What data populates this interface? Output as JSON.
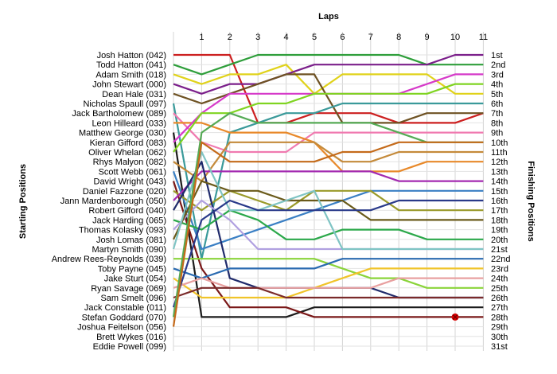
{
  "chart_data": {
    "type": "line",
    "title": "Laps",
    "xlabel": "Laps",
    "ylabel_left": "Starting Positions",
    "ylabel_right": "Finishing Positions",
    "laps": [
      1,
      2,
      3,
      4,
      5,
      6,
      7,
      8,
      9,
      10,
      11
    ],
    "finishing_labels": [
      "1st",
      "2nd",
      "3rd",
      "4th",
      "5th",
      "6th",
      "7th",
      "8th",
      "9th",
      "10th",
      "11th",
      "12th",
      "13th",
      "14th",
      "15th",
      "16th",
      "17th",
      "18th",
      "19th",
      "20th",
      "21st",
      "22nd",
      "23rd",
      "24th",
      "25th",
      "26th",
      "27th",
      "28th",
      "29th",
      "30th",
      "31st"
    ],
    "y_range": [
      1,
      31
    ],
    "grid": true,
    "drivers": [
      {
        "name": "Josh Hatton (042)",
        "color": "#cc1f1f",
        "positions": [
          1,
          1,
          1,
          8,
          8,
          7,
          7,
          7,
          8,
          8,
          8,
          7
        ]
      },
      {
        "name": "Todd Hatton (041)",
        "color": "#2e9e3a",
        "positions": [
          2,
          3,
          2,
          1,
          1,
          1,
          1,
          1,
          1,
          2,
          2,
          2
        ]
      },
      {
        "name": "Adam Smith (018)",
        "color": "#e0d21a",
        "positions": [
          3,
          4,
          3,
          3,
          2,
          5,
          3,
          3,
          3,
          3,
          5,
          5
        ]
      },
      {
        "name": "John Stewart (000)",
        "color": "#7b1f8a",
        "positions": [
          4,
          5,
          4,
          4,
          3,
          2,
          2,
          2,
          2,
          2,
          1,
          1
        ]
      },
      {
        "name": "Dean Hale (031)",
        "color": "#6e5223",
        "positions": [
          5,
          6,
          5,
          4,
          3,
          3,
          8,
          8,
          8,
          7,
          7,
          7
        ]
      },
      {
        "name": "Nicholas Spaull (097)",
        "color": "#3a9a9a",
        "positions": [
          6,
          22,
          9,
          8,
          7,
          7,
          6,
          6,
          6,
          6,
          6,
          6
        ]
      },
      {
        "name": "Jack Bartholomew (089)",
        "color": "#f07ab0",
        "positions": [
          7,
          10,
          11,
          11,
          11,
          9,
          9,
          9,
          9,
          9,
          9,
          9
        ]
      },
      {
        "name": "Leon Hilleard (033)",
        "color": "#e8892a",
        "positions": [
          8,
          8,
          9,
          9,
          9,
          10,
          13,
          13,
          13,
          12,
          12,
          12
        ]
      },
      {
        "name": "Matthew George (030)",
        "color": "#1c1c1c",
        "positions": [
          9,
          28,
          28,
          28,
          28,
          27,
          27,
          27,
          27,
          27,
          27,
          27
        ]
      },
      {
        "name": "Kieran Gifford (083)",
        "color": "#d63ac9",
        "positions": [
          10,
          7,
          5,
          5,
          5,
          5,
          5,
          5,
          5,
          4,
          3,
          3
        ]
      },
      {
        "name": "Oliver Whelan (062)",
        "color": "#7fd421",
        "positions": [
          11,
          7,
          7,
          6,
          6,
          5,
          5,
          5,
          5,
          5,
          4,
          4
        ]
      },
      {
        "name": "Rhys Malyon (082)",
        "color": "#c48a3a",
        "positions": [
          12,
          14,
          10,
          10,
          10,
          10,
          12,
          12,
          11,
          11,
          11,
          11
        ]
      },
      {
        "name": "Scott Webb (061)",
        "color": "#3a7fc4",
        "positions": [
          13,
          21,
          20,
          19,
          18,
          17,
          16,
          15,
          15,
          15,
          15,
          15
        ]
      },
      {
        "name": "David Wright (043)",
        "color": "#7a1818",
        "positions": [
          14,
          23,
          27,
          27,
          27,
          28,
          28,
          28,
          28,
          28,
          28,
          28
        ]
      },
      {
        "name": "Daniel Fazzone (020)",
        "color": "#9a9a2a",
        "positions": [
          15,
          17,
          15,
          16,
          17,
          15,
          15,
          15,
          17,
          17,
          17,
          17
        ]
      },
      {
        "name": "Jann Mardenborough (050)",
        "color": "#a32ab0",
        "positions": [
          16,
          13,
          13,
          13,
          13,
          13,
          13,
          13,
          14,
          14,
          14,
          14
        ]
      },
      {
        "name": "Robert Gifford (040)",
        "color": "#1f2a6b",
        "positions": [
          17,
          12,
          24,
          25,
          25,
          25,
          25,
          25,
          26,
          26,
          26,
          26
        ]
      },
      {
        "name": "Jack Harding (065)",
        "color": "#2ba84a",
        "positions": [
          18,
          19,
          17,
          18,
          20,
          20,
          19,
          19,
          19,
          20,
          20,
          20
        ]
      },
      {
        "name": "Thomas Kolasky (093)",
        "color": "#b0a0e0",
        "positions": [
          19,
          16,
          18,
          21,
          21,
          21,
          21,
          21,
          21,
          21,
          21,
          21
        ]
      },
      {
        "name": "Josh Lomas (081)",
        "color": "#6a5a1a",
        "positions": [
          20,
          14,
          15,
          15,
          16,
          16,
          16,
          18,
          18,
          18,
          18,
          18
        ]
      },
      {
        "name": "Martyn Smith (090)",
        "color": "#7fc4c4",
        "positions": [
          21,
          11,
          17,
          17,
          16,
          15,
          21,
          21,
          21,
          21,
          21,
          21
        ]
      },
      {
        "name": "Andrew Rees-Reynolds (039)",
        "color": "#8ad43a",
        "positions": [
          22,
          22,
          22,
          22,
          22,
          22,
          23,
          24,
          24,
          25,
          25,
          25
        ]
      },
      {
        "name": "Toby Payne (045)",
        "color": "#2a6ab0",
        "positions": [
          23,
          24,
          23,
          23,
          23,
          23,
          22,
          22,
          22,
          22,
          22,
          22
        ]
      },
      {
        "name": "Jake Sturt (054)",
        "color": "#f0c42a",
        "positions": [
          24,
          26,
          26,
          26,
          26,
          25,
          24,
          23,
          23,
          23,
          23,
          23
        ]
      },
      {
        "name": "Ryan Savage (069)",
        "color": "#e8a0a0",
        "positions": [
          25,
          24,
          25,
          25,
          25,
          25,
          25,
          25,
          24,
          24,
          24,
          24
        ]
      },
      {
        "name": "Sam Smelt (096)",
        "color": "#7a2a2a",
        "positions": [
          26,
          25,
          25,
          25,
          26,
          26,
          26,
          26,
          26,
          26,
          26,
          26
        ]
      },
      {
        "name": "Jack Constable (011)",
        "color": "#2a3a8a",
        "positions": [
          27,
          18,
          16,
          17,
          17,
          17,
          17,
          17,
          16,
          16,
          16,
          16
        ]
      },
      {
        "name": "Stefan Goddard (070)",
        "color": "#55aa55",
        "positions": [
          28,
          9,
          7,
          8,
          8,
          8,
          8,
          8,
          9,
          10,
          10,
          10
        ]
      },
      {
        "name": "Joshua Feitelson (056)",
        "color": "#c46a1a",
        "positions": [
          29,
          10,
          12,
          12,
          12,
          12,
          11,
          11,
          10,
          10,
          10,
          10
        ]
      }
    ],
    "retired_marker": {
      "driver": "David Wright (043)",
      "lap": 10,
      "position": 28,
      "color": "#dd0000"
    },
    "unclassified_labels": [
      "Brett Wykes (016)",
      "Eddie Powell (099)"
    ]
  }
}
